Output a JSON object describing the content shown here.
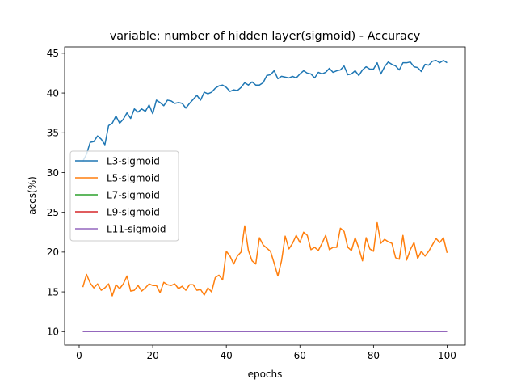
{
  "chart_data": {
    "type": "line",
    "title": "variable: number of hidden layer(sigmoid) - Accuracy",
    "xlabel": "epochs",
    "ylabel": "accs(%)",
    "xlim": [
      -3.95,
      104.95
    ],
    "ylim": [
      8.3,
      45.8
    ],
    "xticks": [
      0,
      20,
      40,
      60,
      80,
      100
    ],
    "yticks": [
      10,
      15,
      20,
      25,
      30,
      35,
      40,
      45
    ],
    "grid": false,
    "legend_position": "center-left",
    "series": [
      {
        "name": "L3-sigmoid",
        "color": "#1f77b4",
        "values": [
          31.4,
          32.3,
          33.8,
          33.9,
          34.6,
          34.2,
          33.5,
          35.9,
          36.2,
          37.1,
          36.2,
          36.7,
          37.5,
          36.8,
          38.0,
          37.6,
          38.0,
          37.7,
          38.5,
          37.4,
          39.1,
          38.8,
          38.4,
          39.1,
          39.0,
          38.7,
          38.8,
          38.7,
          38.1,
          38.7,
          39.2,
          39.7,
          39.1,
          40.1,
          39.9,
          40.1,
          40.6,
          40.9,
          41.0,
          40.7,
          40.2,
          40.4,
          40.3,
          40.7,
          41.3,
          41.0,
          41.4,
          41.0,
          41.0,
          41.3,
          42.2,
          42.3,
          42.8,
          41.8,
          42.1,
          42.0,
          41.9,
          42.1,
          41.9,
          42.4,
          42.8,
          42.5,
          42.4,
          41.9,
          42.6,
          42.4,
          42.6,
          43.1,
          42.6,
          42.8,
          42.9,
          43.4,
          42.3,
          42.4,
          42.8,
          42.2,
          42.9,
          43.3,
          43.0,
          43.0,
          43.8,
          42.4,
          43.3,
          43.9,
          43.6,
          43.4,
          42.9,
          43.8,
          43.8,
          43.9,
          43.3,
          43.2,
          42.7,
          43.6,
          43.5,
          44.0,
          44.1,
          43.8,
          44.1,
          43.8
        ]
      },
      {
        "name": "L5-sigmoid",
        "color": "#ff7f0e",
        "values": [
          15.6,
          17.2,
          16.1,
          15.5,
          16.0,
          15.2,
          15.5,
          16.0,
          14.5,
          15.9,
          15.4,
          16.0,
          17.0,
          15.1,
          15.2,
          15.8,
          15.1,
          15.5,
          16.0,
          15.8,
          15.8,
          14.9,
          16.2,
          15.9,
          15.8,
          16.0,
          15.4,
          15.7,
          15.2,
          15.9,
          15.9,
          15.2,
          15.3,
          14.6,
          15.5,
          15.0,
          16.8,
          17.1,
          16.5,
          20.1,
          19.5,
          18.5,
          19.5,
          20.0,
          23.3,
          20.2,
          18.9,
          18.5,
          21.8,
          20.9,
          20.5,
          20.1,
          18.6,
          17.0,
          18.9,
          22.0,
          20.4,
          21.1,
          22.1,
          21.2,
          22.5,
          22.1,
          20.3,
          20.6,
          20.2,
          21.1,
          22.1,
          20.3,
          20.6,
          20.6,
          23.0,
          22.6,
          20.6,
          20.2,
          21.8,
          20.5,
          18.9,
          21.8,
          20.4,
          20.1,
          23.7,
          21.1,
          21.6,
          21.3,
          21.1,
          19.3,
          19.1,
          22.1,
          19.0,
          20.3,
          21.2,
          19.2,
          20.1,
          19.5,
          20.1,
          20.9,
          21.7,
          21.2,
          21.8,
          19.9
        ]
      },
      {
        "name": "L7-sigmoid",
        "color": "#2ca02c",
        "constant": 10.0
      },
      {
        "name": "L9-sigmoid",
        "color": "#d62728",
        "constant": 10.0
      },
      {
        "name": "L11-sigmoid",
        "color": "#9467bd",
        "constant": 10.0
      }
    ]
  }
}
